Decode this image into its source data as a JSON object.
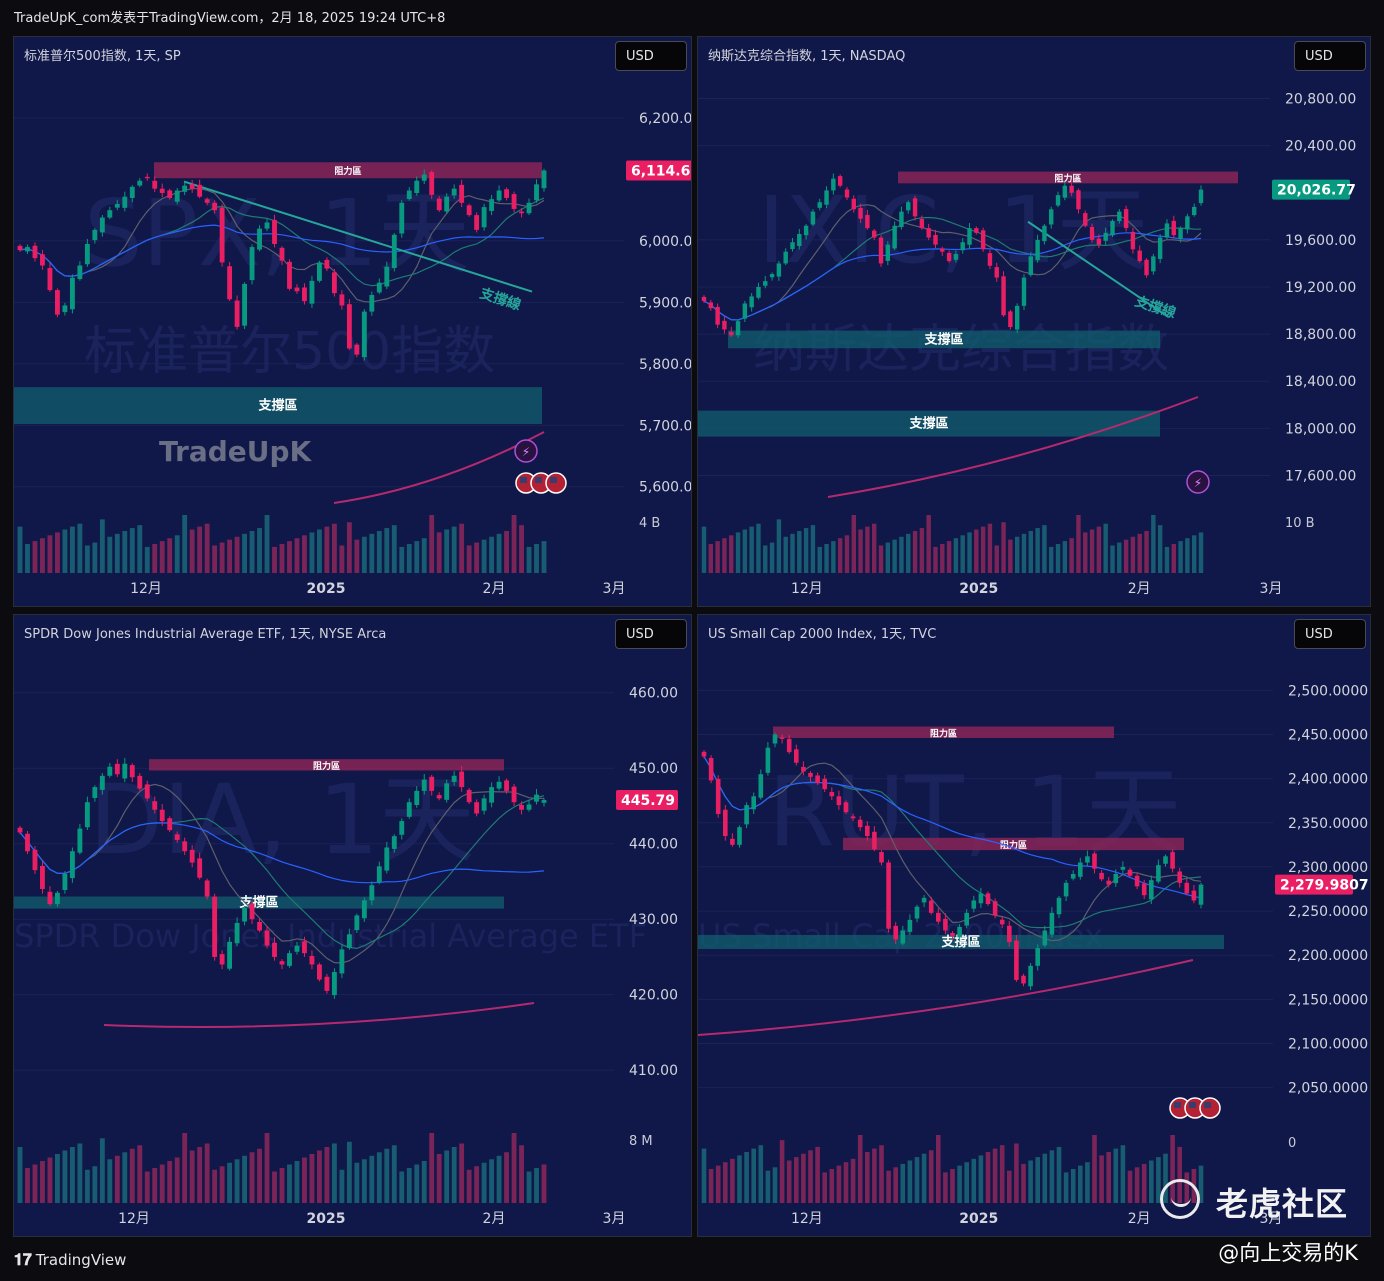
{
  "header": {
    "text": "TradeUpK_com发表于TradingView.com，2月 18, 2025 19:24 UTC+8"
  },
  "footer": {
    "logo_text": "TradingView",
    "handle": "@向上交易的K"
  },
  "community": {
    "text": "老虎社区"
  },
  "chart_data": [
    {
      "type": "candlestick",
      "title": "标准普尔500指数, 1天, SP",
      "currency": "USD",
      "watermark": "SPX, 1天",
      "watermark_sub": "标准普尔500指数",
      "brand_watermark": "TradeUpK",
      "y_ticks": [
        "6,200.00",
        "6,000.00",
        "5,900.00",
        "5,800.00",
        "5,700.00",
        "5,600.00"
      ],
      "y_tick_values": [
        6200,
        6000,
        5900,
        5800,
        5700,
        5600
      ],
      "ylim": [
        5580,
        6270
      ],
      "last_price": "6,114.62",
      "last_value": 6114.62,
      "last_color": "#e91e63",
      "x_ticks": [
        "12月",
        "2025",
        "2月",
        "3月"
      ],
      "volume_label": "4 B",
      "zones": [
        {
          "label": "阻力區",
          "low": 6102,
          "high": 6128,
          "color": "#8a2456"
        },
        {
          "label": "支撐區",
          "low": 5702,
          "high": 5762,
          "color": "#11576a"
        }
      ],
      "trendline_label": "支撐線",
      "close_start": 5985,
      "close_end": 6114.62,
      "closes": [
        5985,
        5990,
        5972,
        5960,
        5920,
        5880,
        5895,
        5940,
        5960,
        5995,
        6018,
        6038,
        6050,
        6060,
        6072,
        6088,
        6098,
        6102,
        6085,
        6078,
        6070,
        6082,
        6090,
        6085,
        6072,
        6062,
        6050,
        5965,
        5905,
        5860,
        5930,
        5990,
        6020,
        6030,
        5995,
        5968,
        5922,
        5918,
        5902,
        5935,
        5965,
        5955,
        5915,
        5895,
        5825,
        5815,
        5885,
        5912,
        5932,
        5958,
        6010,
        6062,
        6082,
        6098,
        6108,
        6075,
        6050,
        6072,
        6085,
        6062,
        6042,
        6018,
        6055,
        6068,
        6082,
        6070,
        6052,
        6045,
        6062,
        6092,
        6114.62
      ]
    },
    {
      "type": "candlestick",
      "title": "纳斯达克综合指数, 1天, NASDAQ",
      "currency": "USD",
      "watermark": "IXIC, 1天",
      "watermark_sub": "纳斯达克综合指数",
      "y_ticks": [
        "20,800.00",
        "20,400.00",
        "19,600.00",
        "19,200.00",
        "18,800.00",
        "18,400.00",
        "18,000.00",
        "17,600.00"
      ],
      "y_tick_values": [
        20800,
        20400,
        19600,
        19200,
        18800,
        18400,
        18000,
        17600
      ],
      "ylim": [
        17400,
        21000
      ],
      "last_price": "20,026.77",
      "last_value": 20026.77,
      "last_color": "#089981",
      "x_ticks": [
        "12月",
        "2025",
        "2月",
        "3月"
      ],
      "volume_label": "10 B",
      "zones": [
        {
          "label": "阻力區",
          "low": 20080,
          "high": 20180,
          "color": "#8a2456"
        },
        {
          "label": "支撐區",
          "low": 18680,
          "high": 18830,
          "color": "#11576a"
        },
        {
          "label": "支撐區",
          "low": 17930,
          "high": 18150,
          "color": "#11576a"
        }
      ],
      "trendline_label": "支撐線",
      "close_start": 19080,
      "close_end": 20026.77,
      "closes": [
        19080,
        19020,
        18880,
        18840,
        18790,
        18910,
        19060,
        19120,
        19200,
        19250,
        19310,
        19400,
        19500,
        19580,
        19650,
        19720,
        19840,
        19920,
        20020,
        20120,
        20060,
        19960,
        19860,
        19780,
        19700,
        19620,
        19400,
        19560,
        19720,
        19840,
        19920,
        19800,
        19700,
        19620,
        19560,
        19500,
        19420,
        19480,
        19580,
        19700,
        19660,
        19520,
        19380,
        19280,
        18960,
        18860,
        19040,
        19280,
        19460,
        19600,
        19720,
        19860,
        19980,
        20060,
        20000,
        19860,
        19720,
        19600,
        19560,
        19660,
        19760,
        19840,
        19700,
        19520,
        19420,
        19300,
        19460,
        19620,
        19740,
        19640,
        19700,
        19800,
        19880,
        20026.77
      ]
    },
    {
      "type": "candlestick",
      "title": "SPDR Dow Jones Industrial Average ETF, 1天, NYSE Arca",
      "currency": "USD",
      "watermark": "DIA, 1天",
      "watermark_sub": "SPDR Dow Jones Industrial Average ETF",
      "y_ticks": [
        "460.00",
        "450.00",
        "440.00",
        "430.00",
        "420.00",
        "410.00"
      ],
      "y_tick_values": [
        460,
        450,
        440,
        430,
        420,
        410
      ],
      "ylim": [
        403,
        465
      ],
      "last_price": "445.79",
      "last_value": 445.79,
      "last_color": "#e91e63",
      "x_ticks": [
        "12月",
        "2025",
        "2月",
        "3月"
      ],
      "volume_label": "8 M",
      "zones": [
        {
          "label": "阻力區",
          "low": 449.7,
          "high": 451.2,
          "color": "#8a2456"
        },
        {
          "label": "支撐區",
          "low": 431.4,
          "high": 433.0,
          "color": "#11576a"
        }
      ],
      "close_start": 441.5,
      "close_end": 445.79,
      "closes": [
        441.5,
        439.0,
        436.5,
        434.0,
        432.0,
        433.5,
        436.0,
        439.0,
        442.0,
        445.5,
        447.5,
        449.0,
        450.2,
        449.2,
        450.6,
        448.8,
        447.3,
        446.0,
        444.5,
        443.0,
        441.8,
        440.5,
        439.0,
        437.5,
        435.5,
        433.0,
        425.0,
        424.0,
        427.0,
        429.5,
        431.5,
        430.0,
        428.5,
        426.5,
        425.0,
        424.0,
        425.5,
        426.5,
        425.5,
        424.0,
        422.0,
        420.5,
        423.0,
        426.0,
        428.0,
        430.5,
        432.5,
        434.5,
        437.0,
        439.5,
        441.0,
        443.0,
        445.5,
        447.0,
        448.5,
        447.0,
        446.0,
        448.0,
        449.0,
        447.5,
        445.5,
        444.0,
        446.0,
        447.5,
        448.2,
        447.0,
        445.5,
        444.5,
        445.2,
        446.5,
        445.79
      ]
    },
    {
      "type": "candlestick",
      "title": "US Small Cap 2000 Index, 1天, TVC",
      "currency": "USD",
      "watermark": "RUT, 1天",
      "watermark_sub": "US Small Cap 2000 Index",
      "y_ticks": [
        "2,500.0000",
        "2,450.0000",
        "2,400.0000",
        "2,350.0000",
        "2,300.0000",
        "2,250.0000",
        "2,200.0000",
        "2,150.0000",
        "2,100.0000",
        "2,050.0000"
      ],
      "y_tick_values": [
        2500,
        2450,
        2400,
        2350,
        2300,
        2250,
        2200,
        2150,
        2100,
        2050
      ],
      "ylim": [
        2010,
        2540
      ],
      "last_price": "2,279.9807",
      "last_value": 2279.9807,
      "last_color": "#e91e63",
      "x_ticks": [
        "12月",
        "2025",
        "2月",
        "3月"
      ],
      "volume_label": "0",
      "zones": [
        {
          "label": "阻力區",
          "low": 2446,
          "high": 2459,
          "color": "#8a2456"
        },
        {
          "label": "阻力區",
          "low": 2319,
          "high": 2333,
          "color": "#8a2456"
        },
        {
          "label": "支撐區",
          "low": 2207,
          "high": 2223,
          "color": "#11576a"
        }
      ],
      "close_start": 2425,
      "close_end": 2279.98,
      "closes": [
        2425,
        2398,
        2360,
        2335,
        2325,
        2345,
        2370,
        2380,
        2405,
        2435,
        2450,
        2445,
        2430,
        2418,
        2408,
        2402,
        2395,
        2388,
        2380,
        2370,
        2362,
        2355,
        2345,
        2335,
        2320,
        2305,
        2230,
        2218,
        2228,
        2240,
        2255,
        2265,
        2248,
        2238,
        2228,
        2222,
        2232,
        2248,
        2262,
        2270,
        2258,
        2245,
        2235,
        2215,
        2172,
        2168,
        2188,
        2208,
        2228,
        2248,
        2265,
        2282,
        2292,
        2305,
        2312,
        2298,
        2286,
        2280,
        2292,
        2300,
        2290,
        2278,
        2268,
        2285,
        2302,
        2312,
        2298,
        2282,
        2270,
        2262,
        2279.98
      ]
    }
  ]
}
